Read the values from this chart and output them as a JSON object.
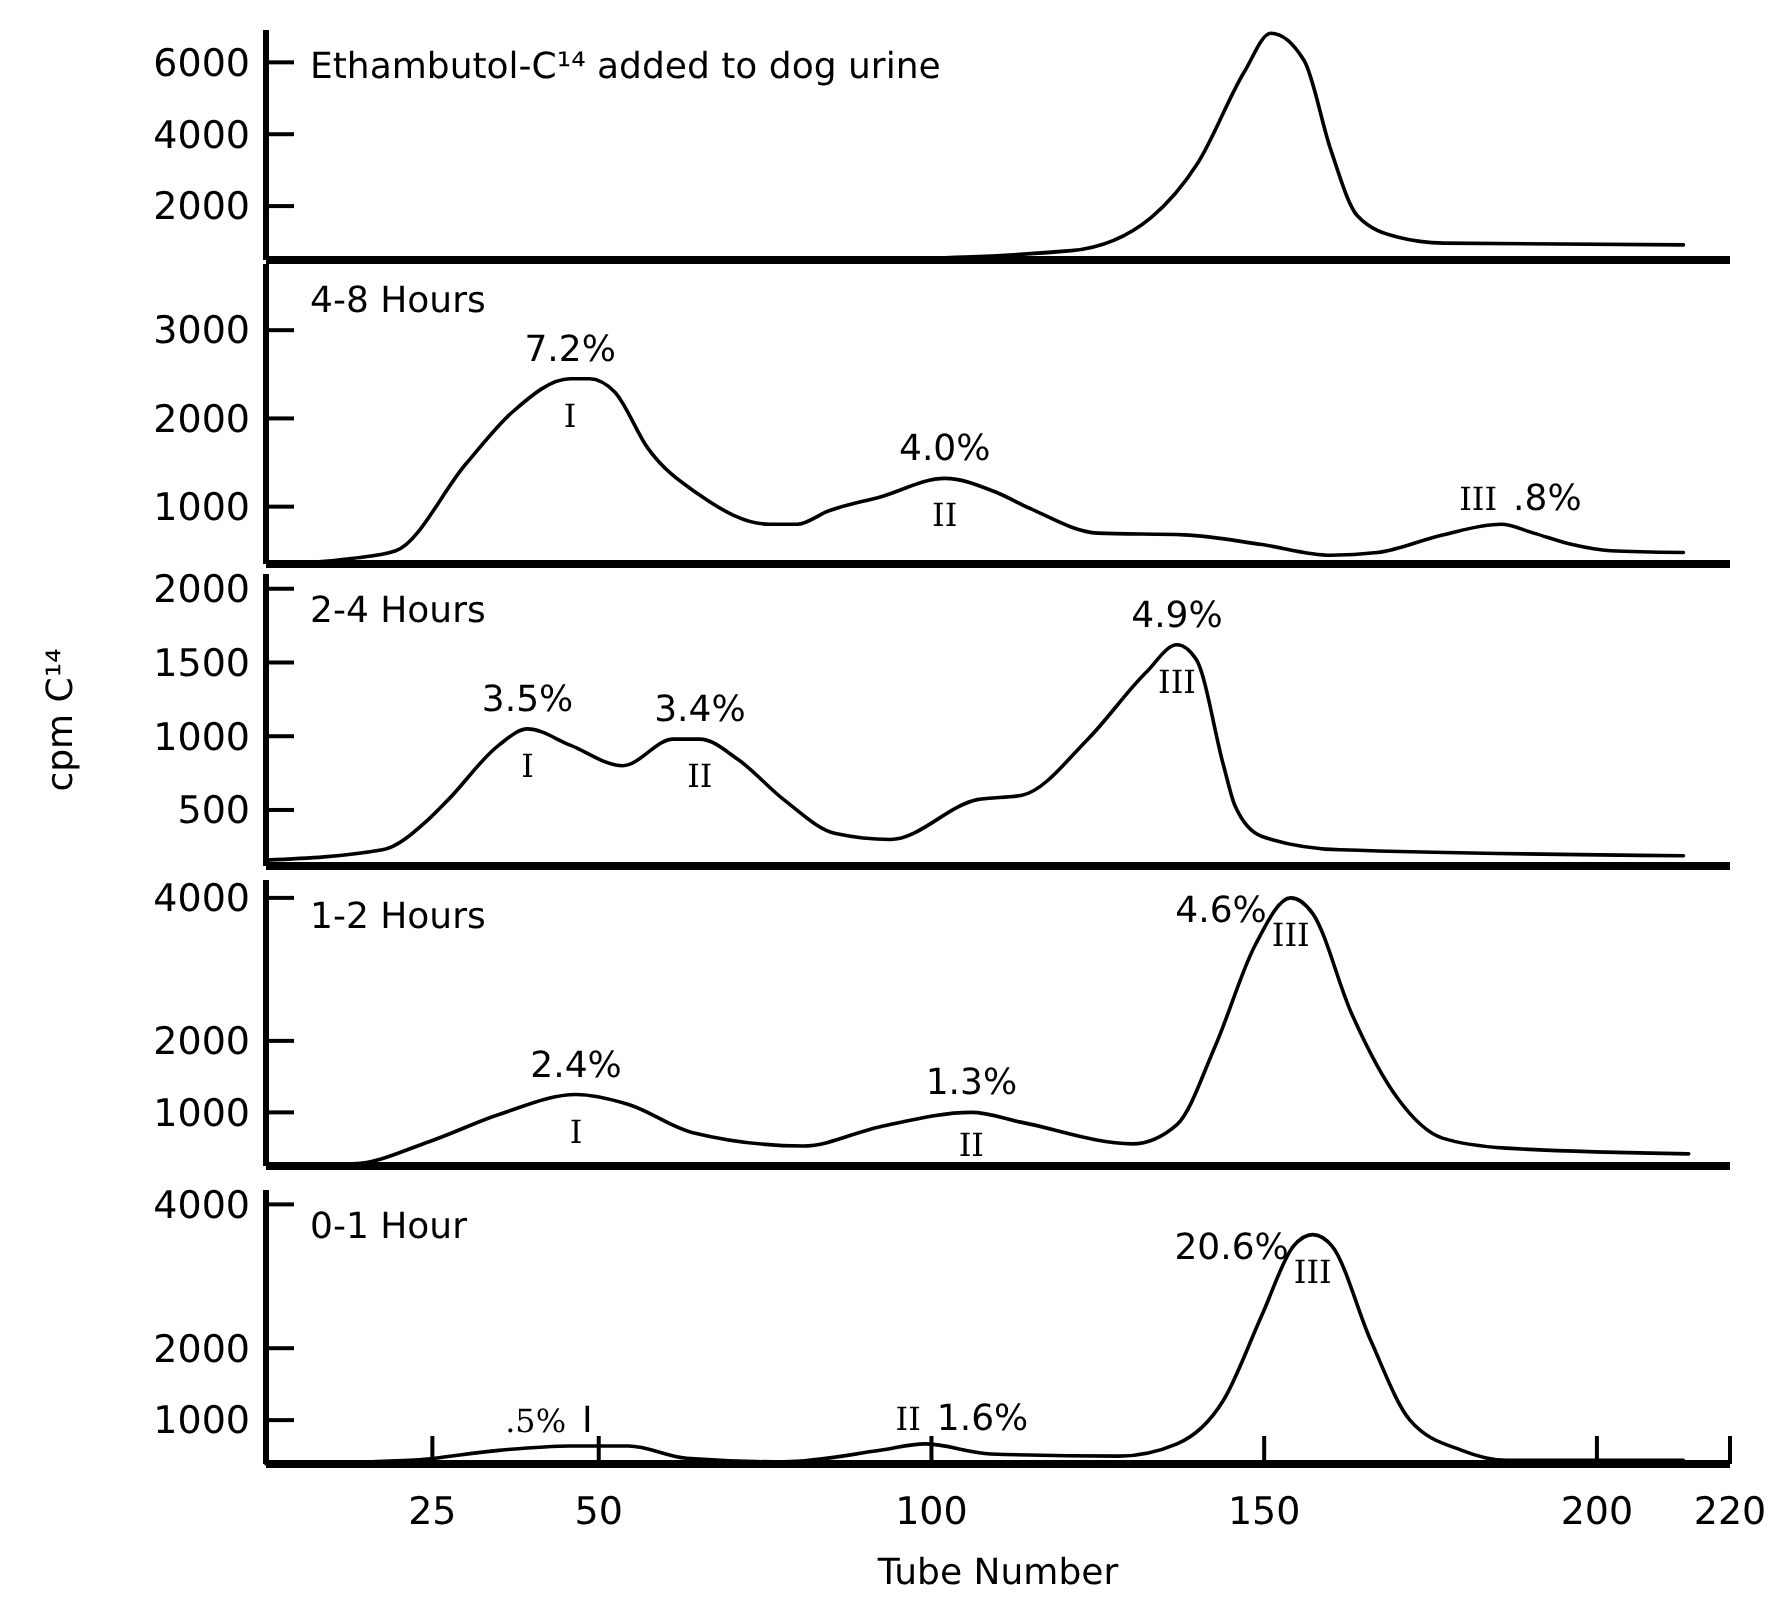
{
  "chart_data": [
    {
      "type": "line",
      "title": "Ethambutol-C¹⁴ added to dog urine",
      "x": [
        89,
        121,
        133,
        140,
        147,
        151,
        156,
        160,
        164,
        170,
        177,
        213
      ],
      "series": [
        {
          "color": "#000000",
          "values": [
            500,
            760,
            1680,
            3190,
            5730,
            6810,
            6050,
            3570,
            1730,
            1140,
            970,
            920
          ]
        }
      ],
      "xlim": [
        0,
        220
      ],
      "ylim": [
        500,
        6900
      ],
      "yticks": [
        2000,
        4000,
        6000
      ],
      "tick_labels": "y"
    },
    {
      "type": "line",
      "title": "4-8 Hours",
      "x": [
        5,
        12.5,
        19.5,
        30,
        37,
        45.7,
        48.6,
        52.4,
        57.4,
        65,
        75.7,
        79.8,
        84.5,
        92.3,
        102,
        109.8,
        114.8,
        125,
        138,
        149.7,
        160,
        167,
        176.8,
        185.6,
        190.5,
        196.3,
        202,
        213
      ],
      "series": [
        {
          "color": "#000000",
          "values": [
            360,
            410,
            500,
            1480,
            2070,
            2450,
            2450,
            2300,
            1660,
            1140,
            800,
            800,
            950,
            1110,
            1320,
            1160,
            980,
            700,
            680,
            570,
            450,
            480,
            680,
            800,
            700,
            570,
            500,
            480
          ]
        }
      ],
      "xlim": [
        0,
        220
      ],
      "ylim": [
        350,
        3750
      ],
      "yticks": [
        1000,
        2000,
        3000
      ],
      "tick_labels": "y",
      "annotations": [
        {
          "text": "7.2%",
          "x": 45.7,
          "y": 2450
        },
        {
          "text": "I",
          "x": 45.7,
          "y": 2450
        },
        {
          "text": "4.0%",
          "x": 102,
          "y": 1320
        },
        {
          "text": "II",
          "x": 102,
          "y": 1320
        },
        {
          "text": "III",
          "x": 185.6,
          "y": 800
        },
        {
          "text": ".8%",
          "x": 185.6,
          "y": 800
        }
      ]
    },
    {
      "type": "line",
      "title": "2-4 Hours",
      "ylabel": "cpm C¹⁴",
      "x": [
        0,
        17.5,
        24.5,
        27.4,
        35,
        39.3,
        45.7,
        53.6,
        61.2,
        65.2,
        71,
        77.8,
        85.6,
        93.8,
        106.9,
        113.6,
        123.5,
        132.2,
        136.9,
        139.8,
        143.9,
        145.6,
        149.7,
        161.4,
        213
      ],
      "series": [
        {
          "color": "#000000",
          "values": [
            160,
            230,
            440,
            570,
            940,
            1050,
            940,
            800,
            980,
            980,
            840,
            570,
            340,
            300,
            570,
            600,
            980,
            1430,
            1620,
            1520,
            800,
            530,
            320,
            230,
            190
          ]
        }
      ],
      "xlim": [
        0,
        220
      ],
      "ylim": [
        120,
        2100
      ],
      "yticks": [
        500,
        1000,
        1500,
        2000
      ],
      "tick_labels": "y",
      "annotations": [
        {
          "text": "3.5%",
          "x": 39.3,
          "y": 1050
        },
        {
          "text": "I",
          "x": 39.3,
          "y": 1050
        },
        {
          "text": "3.4%",
          "x": 65.2,
          "y": 980
        },
        {
          "text": "II",
          "x": 65.2,
          "y": 980
        },
        {
          "text": "4.9%",
          "x": 136.9,
          "y": 1620
        },
        {
          "text": "III",
          "x": 136.9,
          "y": 1620
        }
      ]
    },
    {
      "type": "line",
      "title": "1-2 Hours",
      "x": [
        0,
        12.8,
        24.5,
        35,
        46.6,
        54.5,
        64,
        80.7,
        92.3,
        106,
        113.6,
        130.2,
        136.9,
        142.7,
        148.6,
        154,
        157.3,
        163.1,
        170.1,
        176.8,
        186.4,
        213.8
      ],
      "series": [
        {
          "color": "#000000",
          "values": [
            280,
            280,
            590,
            970,
            1250,
            1110,
            720,
            530,
            800,
            1000,
            860,
            560,
            830,
            1940,
            3330,
            4000,
            3780,
            2390,
            1190,
            640,
            500,
            420
          ]
        }
      ],
      "xlim": [
        0,
        220
      ],
      "ylim": [
        250,
        4250
      ],
      "yticks": [
        1000,
        2000,
        4000
      ],
      "tick_labels": "y",
      "annotations": [
        {
          "text": "2.4%",
          "x": 46.6,
          "y": 1250
        },
        {
          "text": "I",
          "x": 46.6,
          "y": 1250
        },
        {
          "text": "1.3%",
          "x": 106,
          "y": 1000
        },
        {
          "text": "II",
          "x": 106,
          "y": 1000
        },
        {
          "text": "4.6%",
          "x": 154,
          "y": 4000
        },
        {
          "text": "III",
          "x": 154,
          "y": 4000
        }
      ]
    },
    {
      "type": "line",
      "title": "0-1 Hour",
      "xlabel": "Tube Number",
      "x": [
        0,
        21.6,
        35,
        45.7,
        54.5,
        63.2,
        77.8,
        92.3,
        99,
        108.9,
        128.2,
        136.9,
        143.9,
        149.7,
        154.4,
        157.3,
        160.2,
        166,
        171.9,
        179.7,
        186.4,
        213
      ],
      "series": [
        {
          "color": "#000000",
          "values": [
            390,
            440,
            580,
            640,
            640,
            470,
            420,
            580,
            670,
            530,
            500,
            670,
            1280,
            2470,
            3420,
            3580,
            3420,
            2110,
            1000,
            580,
            440,
            440
          ]
        }
      ],
      "xlim": [
        0,
        220
      ],
      "ylim": [
        390,
        4200
      ],
      "xticks": [
        25,
        50,
        100,
        150,
        200,
        220
      ],
      "yticks": [
        1000,
        2000,
        4000
      ],
      "annotations": [
        {
          "text": ".5%",
          "x": 45.7,
          "y": 640
        },
        {
          "text": "I",
          "x": 45.7,
          "y": 640
        },
        {
          "text": "II",
          "x": 99,
          "y": 670
        },
        {
          "text": "1.6%",
          "x": 99,
          "y": 670
        },
        {
          "text": "20.6%",
          "x": 157.3,
          "y": 3580
        },
        {
          "text": "III",
          "x": 157.3,
          "y": 3580
        }
      ]
    }
  ]
}
